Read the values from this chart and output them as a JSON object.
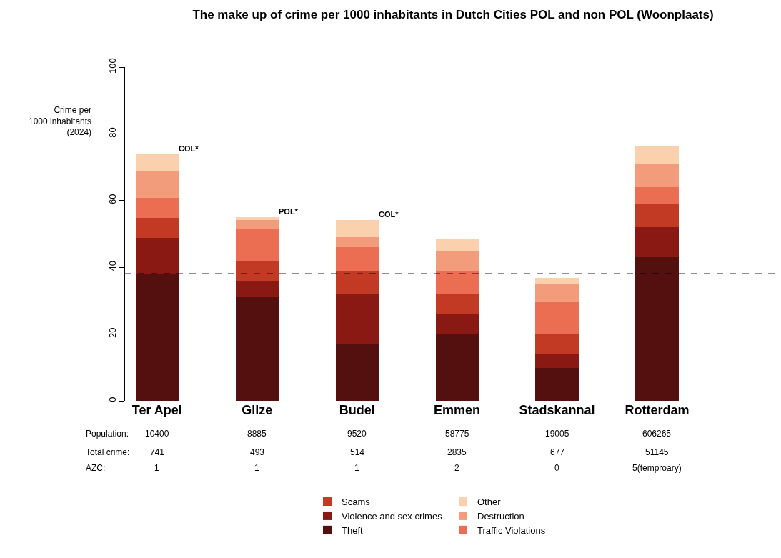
{
  "chart_data": {
    "type": "bar",
    "stacked": true,
    "title": "The make up of crime per 1000 inhabitants in Dutch Cities POL and non POL (Woonplaats)",
    "ylabel": "Crime per\n1000 inhabitants\n(2024)",
    "categories": [
      "Ter Apel",
      "Gilze",
      "Budel",
      "Emmen",
      "Stadskannal",
      "Rotterdam"
    ],
    "series": [
      {
        "name": "Theft",
        "color": "#54100f",
        "values": [
          38.1,
          31.1,
          17.0,
          20.0,
          9.9,
          43.1
        ]
      },
      {
        "name": "Violence and sex crimes",
        "color": "#8a1813",
        "values": [
          10.8,
          4.9,
          15.0,
          6.0,
          4.1,
          9.0
        ]
      },
      {
        "name": "Scams",
        "color": "#c23a23",
        "values": [
          6.0,
          6.0,
          7.0,
          6.2,
          6.0,
          7.1
        ]
      },
      {
        "name": "Traffic Violations",
        "color": "#ec6e52",
        "values": [
          6.0,
          9.3,
          7.1,
          6.8,
          9.8,
          4.9
        ]
      },
      {
        "name": "Destruction",
        "color": "#f39c7b",
        "values": [
          8.1,
          2.9,
          3.0,
          6.0,
          5.2,
          7.1
        ]
      },
      {
        "name": "Other",
        "color": "#fbd0ac",
        "values": [
          4.9,
          0.9,
          5.1,
          3.3,
          1.9,
          5.1
        ]
      }
    ],
    "ylim": [
      0,
      100
    ],
    "yticks": [
      0,
      20,
      40,
      60,
      80,
      100
    ],
    "grid": false,
    "legend": "bottom",
    "ref_lines": [
      {
        "axis": "y",
        "value": 38.1,
        "line_style": "dashed",
        "color": "#000000"
      }
    ],
    "annotations": [
      {
        "text": "COL*",
        "x": "Ter Apel",
        "y": 73.9
      },
      {
        "text": "POL*",
        "x": "Gilze",
        "y": 55.1
      },
      {
        "text": "COL*",
        "x": "Budel",
        "y": 54.2
      },
      "Population:",
      "10400",
      "8885",
      "9520",
      "58775",
      "19005",
      "606265",
      "Total crime:",
      "741",
      "493",
      "514",
      "2835",
      "677",
      "51145",
      "AZC:",
      "1",
      "1",
      "1",
      "2",
      "0",
      "5(temproary)"
    ]
  }
}
